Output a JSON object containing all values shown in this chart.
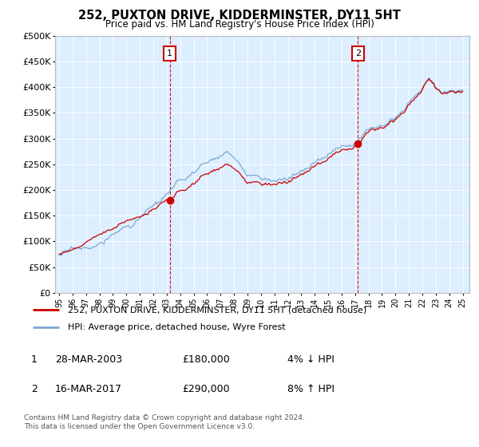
{
  "title": "252, PUXTON DRIVE, KIDDERMINSTER, DY11 5HT",
  "subtitle": "Price paid vs. HM Land Registry's House Price Index (HPI)",
  "legend_line1": "252, PUXTON DRIVE, KIDDERMINSTER, DY11 5HT (detached house)",
  "legend_line2": "HPI: Average price, detached house, Wyre Forest",
  "annotation1_date": "28-MAR-2003",
  "annotation1_price": "£180,000",
  "annotation1_hpi": "4% ↓ HPI",
  "annotation2_date": "16-MAR-2017",
  "annotation2_price": "£290,000",
  "annotation2_hpi": "8% ↑ HPI",
  "footer": "Contains HM Land Registry data © Crown copyright and database right 2024.\nThis data is licensed under the Open Government Licence v3.0.",
  "hpi_color": "#7aaad4",
  "price_color": "#cc0000",
  "vline_color": "#cc0000",
  "box_edgecolor": "#cc0000",
  "ylim": [
    0,
    500000
  ],
  "yticks": [
    0,
    50000,
    100000,
    150000,
    200000,
    250000,
    300000,
    350000,
    400000,
    450000,
    500000
  ],
  "plot_bg": "#ddeeff",
  "purchase1_year": 2003.22,
  "purchase1_price": 180000,
  "purchase2_year": 2017.22,
  "purchase2_price": 290000,
  "start_year": 1995,
  "end_year": 2025
}
